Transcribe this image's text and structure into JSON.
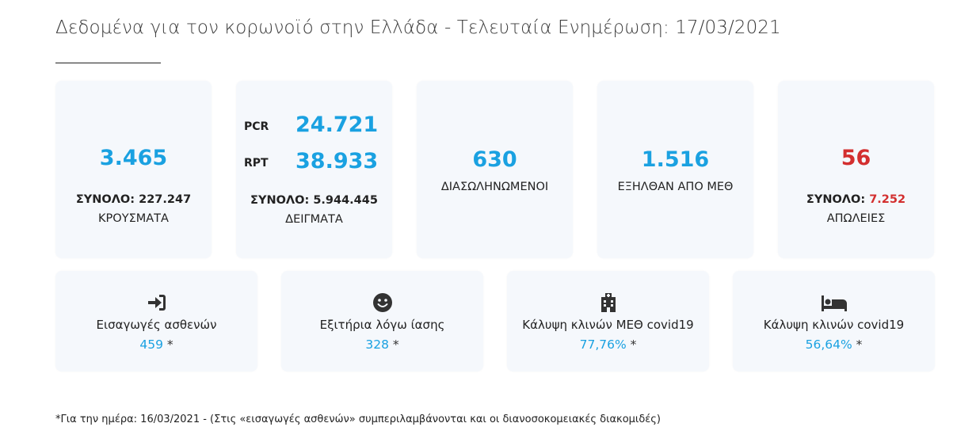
{
  "header": {
    "title": "Δεδομένα για τον κορωνοϊό στην Ελλάδα - Τελευταία Ενημέρωση: 17/03/2021"
  },
  "cases": {
    "value": "3.465",
    "total_prefix": "ΣΥΝΟΛΟ: ",
    "total_value": "227.247",
    "label": "ΚΡΟΥΣΜΑΤΑ"
  },
  "tests": {
    "pcr_label": "PCR",
    "pcr_value": "24.721",
    "rpt_label": "RPT",
    "rpt_value": "38.933",
    "total_prefix": "ΣΥΝΟΛΟ: ",
    "total_value": "5.944.445",
    "label": "ΔΕΙΓΜΑΤΑ"
  },
  "intubated": {
    "value": "630",
    "label": "ΔΙΑΣΩΛΗΝΩΜΕΝΟΙ"
  },
  "icu_discharged": {
    "value": "1.516",
    "label": "ΕΞΗΛΘΑΝ ΑΠΟ ΜΕΘ"
  },
  "deaths": {
    "value": "56",
    "total_prefix": "ΣΥΝΟΛΟ: ",
    "total_value": "7.252",
    "label": "ΑΠΩΛΕΙΕΣ"
  },
  "admissions": {
    "icon": "sign-in-icon",
    "label": "Εισαγωγές ασθενών",
    "value": "459",
    "asterisk": "*"
  },
  "recovered": {
    "icon": "smile-icon",
    "label": "Εξιτήρια λόγω ίασης",
    "value": "328",
    "asterisk": "*"
  },
  "icu_beds": {
    "icon": "hospital-icon",
    "label": "Κάλυψη κλινών ΜΕΘ covid19",
    "value": "77,76%",
    "asterisk": "*"
  },
  "covid_beds": {
    "icon": "bed-icon",
    "label": "Κάλυψη κλινών covid19",
    "value": "56,64%",
    "asterisk": "*"
  },
  "footnote": "*Για την ημέρα: 16/03/2021 - (Στις «εισαγωγές ασθενών» συμπεριλαμβάνονται και οι διανοσοκομειακές διακομιδές)",
  "colors": {
    "accent_blue": "#1aa1e1",
    "alert_red": "#d32f2f",
    "card_bg": "#f5f8fc"
  }
}
